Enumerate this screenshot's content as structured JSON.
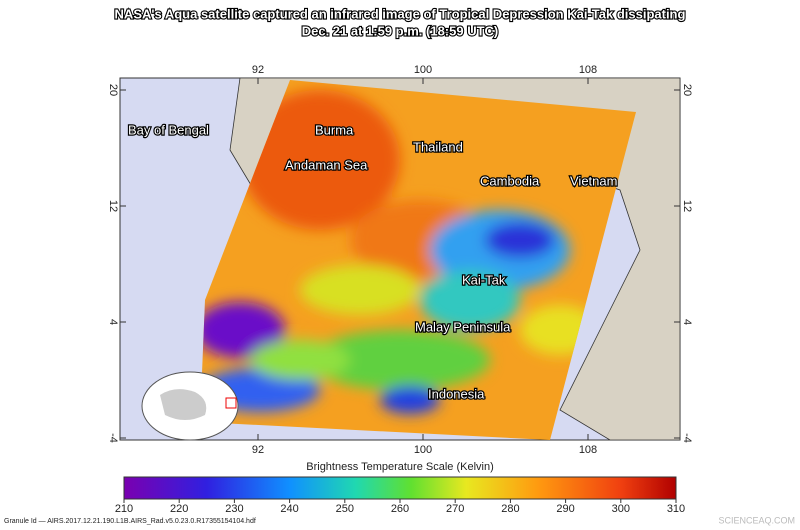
{
  "header": {
    "title": [
      "NASA's Aqua satellite captured an infrared image of Tropical Depression Kai-Tak dissipating",
      "Dec. 21 at 1:59 p.m. (18:59 UTC)"
    ]
  },
  "map": {
    "lon_ticks": [
      92,
      100,
      108
    ],
    "lat_ticks": [
      20,
      12,
      4,
      -4
    ],
    "labels": [
      "Bay of Bengal",
      "Burma",
      "Andaman Sea",
      "Thailand",
      "Cambodia",
      "Vietnam",
      "Kai-Tak",
      "Malay Peninsula",
      "Indonesia"
    ]
  },
  "colorbar": {
    "title": "Brightness Temperature Scale (Kelvin)",
    "ticks": [
      210,
      220,
      230,
      240,
      250,
      260,
      270,
      280,
      290,
      300,
      310
    ]
  },
  "granule": "Granule Id — AIRS.2017.12.21.190.L1B.AIRS_Rad.v5.0.23.0.R17355154104.hdf",
  "watermark": "SCIENCEAQ.COM"
}
